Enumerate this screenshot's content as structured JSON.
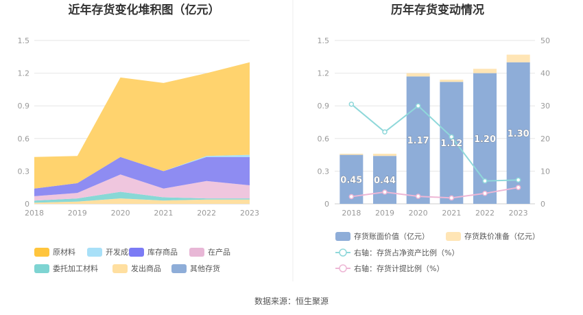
{
  "source": "数据来源：恒生聚源",
  "chart_data": [
    {
      "type": "area",
      "title": "近年存货变化堆积图（亿元）",
      "categories": [
        "2018",
        "2019",
        "2020",
        "2021",
        "2022",
        "2023"
      ],
      "ylim": [
        0,
        1.5
      ],
      "yticks": [
        "0",
        "0.3",
        "0.6",
        "0.9",
        "1.2",
        "1.5"
      ],
      "grid": true,
      "legend_position": "bottom",
      "series": [
        {
          "name": "发出商品",
          "color": "#FFDFA0",
          "values": [
            0.01,
            0.02,
            0.05,
            0.03,
            0.04,
            0.04
          ]
        },
        {
          "name": "委托加工材料",
          "color": "#88D8D6",
          "values": [
            0.02,
            0.03,
            0.06,
            0.03,
            0.01,
            0.01
          ]
        },
        {
          "name": "其他存货",
          "color": "#8EADD8",
          "values": [
            0.0,
            0.0,
            0.0,
            0.0,
            0.0,
            0.0
          ]
        },
        {
          "name": "在产品",
          "color": "#EFC6DE",
          "values": [
            0.04,
            0.05,
            0.16,
            0.08,
            0.16,
            0.12
          ]
        },
        {
          "name": "库存商品",
          "color": "#8E8CF2",
          "values": [
            0.07,
            0.09,
            0.16,
            0.16,
            0.22,
            0.26
          ]
        },
        {
          "name": "开发成本",
          "color": "#A8E0F8",
          "values": [
            0.0,
            0.0,
            0.0,
            0.0,
            0.01,
            0.02
          ]
        },
        {
          "name": "原材料",
          "color": "#FFD36E",
          "values": [
            0.29,
            0.25,
            0.73,
            0.81,
            0.76,
            0.85
          ]
        }
      ],
      "legend": [
        {
          "name": "原材料",
          "color": "#FFC53D"
        },
        {
          "name": "开发成本",
          "color": "#A8E0F8"
        },
        {
          "name": "库存商品",
          "color": "#7B7BF5"
        },
        {
          "name": "在产品",
          "color": "#E8B7D6"
        },
        {
          "name": "委托加工材料",
          "color": "#7ED4D2"
        },
        {
          "name": "发出商品",
          "color": "#FFDFA0"
        },
        {
          "name": "其他存货",
          "color": "#8EADD8"
        }
      ]
    },
    {
      "type": "bar",
      "title": "历年存货变动情况",
      "categories": [
        "2018",
        "2019",
        "2020",
        "2021",
        "2022",
        "2023"
      ],
      "ylim": [
        0,
        1.5
      ],
      "yticks": [
        "0",
        "0.3",
        "0.6",
        "0.9",
        "1.2",
        "1.5"
      ],
      "y2lim": [
        0,
        50
      ],
      "y2ticks": [
        "0",
        "10",
        "20",
        "30",
        "40",
        "50"
      ],
      "grid": true,
      "legend_position": "bottom",
      "bars": [
        {
          "name": "存货账面价值（亿元）",
          "color": "#8EADD8",
          "values": [
            0.45,
            0.44,
            1.17,
            1.12,
            1.2,
            1.3
          ],
          "labels": [
            "0.45",
            "0.44",
            "1.17",
            "1.12",
            "1.20",
            "1.30"
          ]
        },
        {
          "name": "存货跌价准备（亿元）",
          "color": "#FFE5B5",
          "values": [
            0.01,
            0.02,
            0.03,
            0.02,
            0.04,
            0.07
          ]
        }
      ],
      "lines": [
        {
          "name": "右轴：存货占净资产比例（%）",
          "color": "#8FD8DA",
          "values": [
            30.5,
            22.0,
            30.0,
            20.5,
            7.0,
            7.3
          ]
        },
        {
          "name": "右轴：存货计提比例（%）",
          "color": "#EDB6D5",
          "values": [
            2.2,
            3.6,
            2.3,
            1.8,
            3.2,
            5.0
          ]
        }
      ]
    }
  ]
}
